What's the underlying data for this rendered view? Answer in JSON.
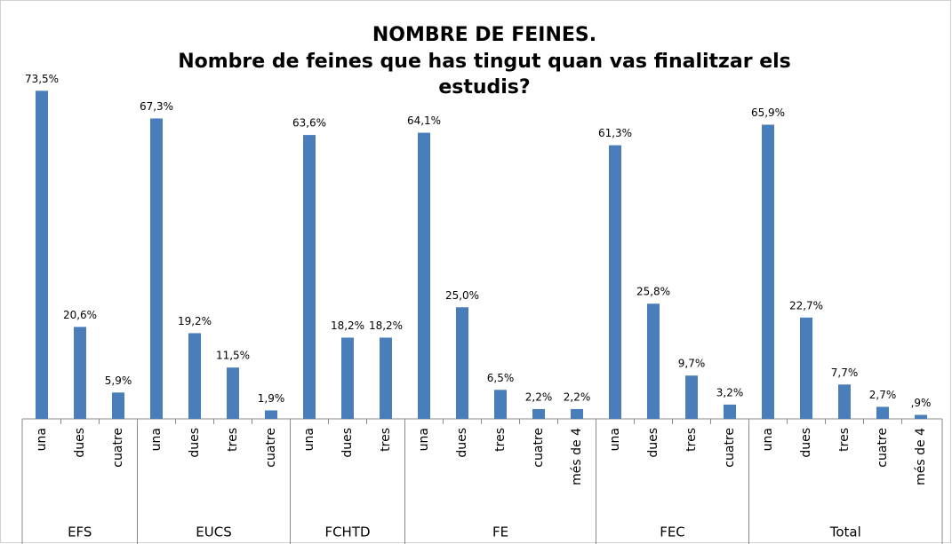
{
  "chart_data": {
    "type": "bar",
    "title": "NOMBRE DE FEINES.",
    "subtitle": [
      "Nombre de feines que has tingut quan vas finalitzar els",
      "estudis?"
    ],
    "color": "#4a7ebb",
    "groups": [
      {
        "name": "EFS",
        "categories": [
          "una",
          "dues",
          "cuatre"
        ],
        "values": [
          73.5,
          20.6,
          5.9
        ],
        "value_labels": [
          "73,5%",
          "20,6%",
          "5,9%"
        ]
      },
      {
        "name": "EUCS",
        "categories": [
          "una",
          "dues",
          "tres",
          "cuatre"
        ],
        "values": [
          67.3,
          19.2,
          11.5,
          1.9
        ],
        "value_labels": [
          "67,3%",
          "19,2%",
          "11,5%",
          "1,9%"
        ]
      },
      {
        "name": "FCHTD",
        "categories": [
          "una",
          "dues",
          "tres"
        ],
        "values": [
          63.6,
          18.2,
          18.2
        ],
        "value_labels": [
          "63,6%",
          "18,2%",
          "18,2%"
        ]
      },
      {
        "name": "FE",
        "categories": [
          "una",
          "dues",
          "tres",
          "cuatre",
          "més de 4"
        ],
        "values": [
          64.1,
          25.0,
          6.5,
          2.2,
          2.2
        ],
        "value_labels": [
          "64,1%",
          "25,0%",
          "6,5%",
          "2,2%",
          "2,2%"
        ]
      },
      {
        "name": "FEC",
        "categories": [
          "una",
          "dues",
          "tres",
          "cuatre"
        ],
        "values": [
          61.3,
          25.8,
          9.7,
          3.2
        ],
        "value_labels": [
          "61,3%",
          "25,8%",
          "9,7%",
          "3,2%"
        ]
      },
      {
        "name": "Total",
        "categories": [
          "una",
          "dues",
          "tres",
          "cuatre",
          "més de 4"
        ],
        "values": [
          65.9,
          22.7,
          7.7,
          2.7,
          0.9
        ],
        "value_labels": [
          "65,9%",
          "22,7%",
          "7,7%",
          "2,7%",
          ",9%"
        ]
      }
    ]
  }
}
